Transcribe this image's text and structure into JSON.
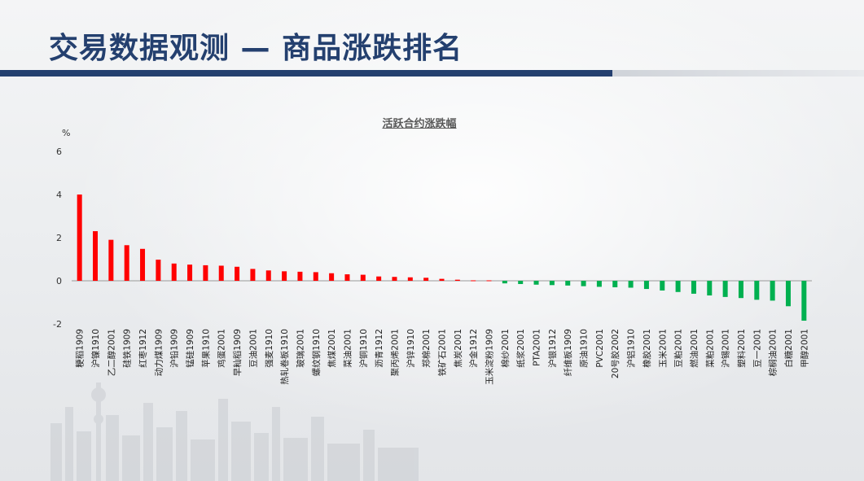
{
  "page": {
    "title": "交易数据观测 — 商品涨跌排名"
  },
  "colors": {
    "title": "#24406f",
    "up": "#ff0000",
    "down": "#00b050"
  },
  "chart_data": {
    "type": "bar",
    "title": "活跃合约涨跌幅",
    "ylabel": "%",
    "xlabel": "",
    "ylim": [
      -2,
      6
    ],
    "yticks": [
      6,
      4,
      2,
      0,
      -2
    ],
    "grid": false,
    "categories": [
      "粳稻1909",
      "沪镍1910",
      "乙二醇2001",
      "硅铁1909",
      "红枣1912",
      "动力煤1909",
      "沪铅1909",
      "锰硅1909",
      "苹果1910",
      "鸡蛋2001",
      "早籼稻1909",
      "豆油2001",
      "强麦1910",
      "热轧卷板1910",
      "玻璃2001",
      "螺纹钢1910",
      "焦煤2001",
      "菜油2001",
      "沪铜1910",
      "沥青1912",
      "聚丙烯2001",
      "沪锌1910",
      "郑棉2001",
      "铁矿石2001",
      "焦炭2001",
      "沪金1912",
      "玉米淀粉1909",
      "棉纱2001",
      "纸浆2001",
      "PTA2001",
      "沪银1912",
      "纤维板1909",
      "原油1910",
      "PVC2001",
      "20号胶2002",
      "沪铝1910",
      "橡胶2001",
      "玉米2001",
      "豆粕2001",
      "燃油2001",
      "菜粕2001",
      "沪锡2001",
      "塑料2001",
      "豆一2001",
      "棕榈油2001",
      "白糖2001",
      "甲醇2001"
    ],
    "values": [
      4.0,
      2.3,
      1.9,
      1.65,
      1.48,
      0.98,
      0.8,
      0.75,
      0.72,
      0.7,
      0.65,
      0.55,
      0.48,
      0.44,
      0.42,
      0.4,
      0.35,
      0.3,
      0.28,
      0.2,
      0.18,
      0.16,
      0.14,
      0.09,
      0.05,
      0.02,
      0.02,
      -0.12,
      -0.15,
      -0.18,
      -0.2,
      -0.22,
      -0.25,
      -0.28,
      -0.3,
      -0.32,
      -0.38,
      -0.45,
      -0.52,
      -0.6,
      -0.68,
      -0.75,
      -0.8,
      -0.88,
      -0.92,
      -1.18,
      -1.85
    ]
  }
}
